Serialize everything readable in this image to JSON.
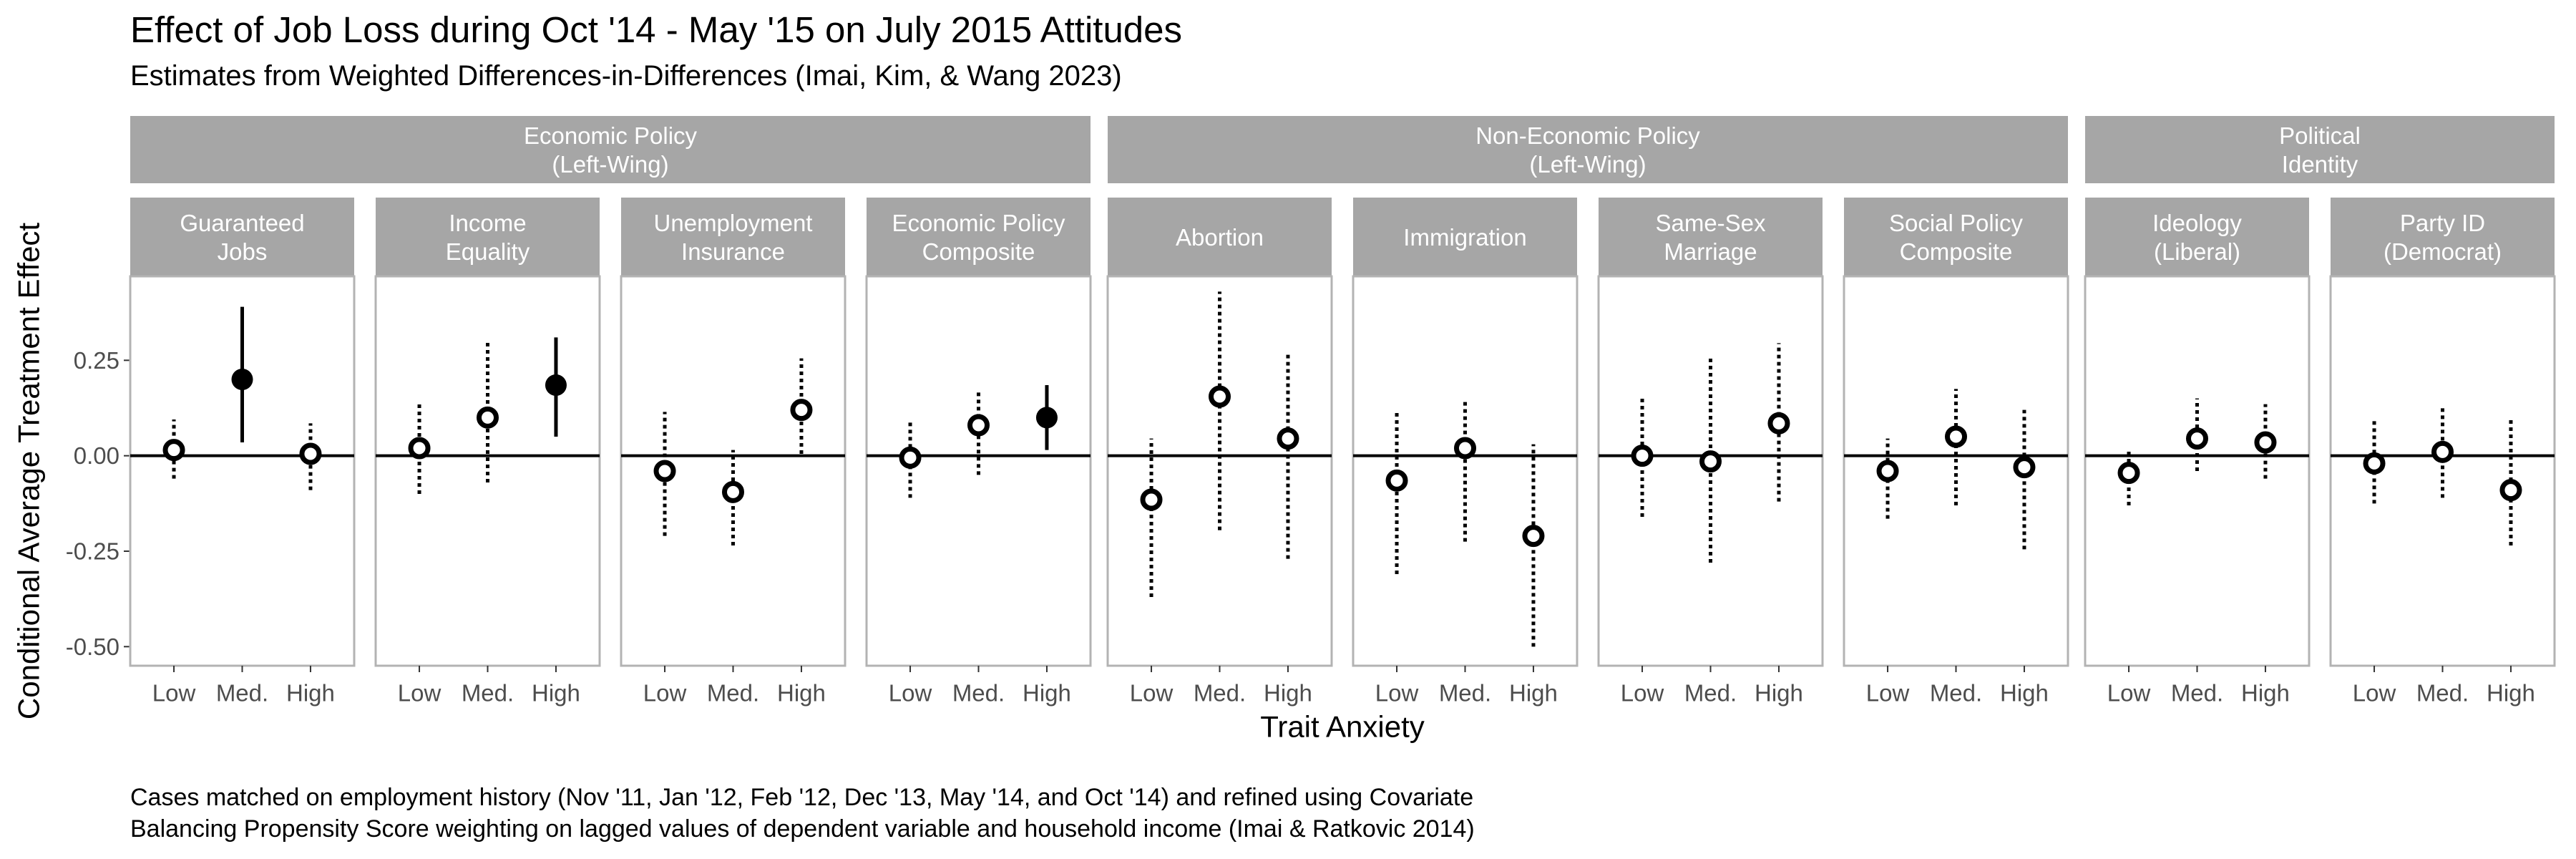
{
  "chart_data": {
    "type": "scatter",
    "title": "Effect of Job Loss during Oct '14 - May '15 on July 2015 Attitudes",
    "subtitle": "Estimates from Weighted Differences-in-Differences (Imai, Kim, & Wang 2023)",
    "xlabel": "Trait Anxiety",
    "ylabel": "Conditional Average Treatment Effect",
    "categories": [
      "Low",
      "Med.",
      "High"
    ],
    "ylim": [
      -0.55,
      0.47
    ],
    "yticks": [
      -0.5,
      -0.25,
      0.0,
      0.25
    ],
    "ytick_labels": [
      "-0.50",
      "-0.25",
      "0.00",
      "0.25"
    ],
    "reference_line": 0,
    "grid": false,
    "groups": [
      {
        "label": "Economic Policy\n(Left-Wing)",
        "panel_count": 4
      },
      {
        "label": "Non-Economic Policy\n(Left-Wing)",
        "panel_count": 4
      },
      {
        "label": "Political\nIdentity",
        "panel_count": 2
      }
    ],
    "panels": [
      {
        "label": "Guaranteed\nJobs",
        "points": [
          {
            "x": "Low",
            "est": 0.015,
            "lo": -0.06,
            "hi": 0.095,
            "significant": false
          },
          {
            "x": "Med.",
            "est": 0.2,
            "lo": 0.035,
            "hi": 0.39,
            "significant": true
          },
          {
            "x": "High",
            "est": 0.005,
            "lo": -0.09,
            "hi": 0.085,
            "significant": false
          }
        ]
      },
      {
        "label": "Income\nEquality",
        "points": [
          {
            "x": "Low",
            "est": 0.02,
            "lo": -0.1,
            "hi": 0.135,
            "significant": false
          },
          {
            "x": "Med.",
            "est": 0.1,
            "lo": -0.07,
            "hi": 0.3,
            "significant": false
          },
          {
            "x": "High",
            "est": 0.185,
            "lo": 0.05,
            "hi": 0.31,
            "significant": true
          }
        ]
      },
      {
        "label": "Unemployment\nInsurance",
        "points": [
          {
            "x": "Low",
            "est": -0.04,
            "lo": -0.21,
            "hi": 0.115,
            "significant": false
          },
          {
            "x": "Med.",
            "est": -0.095,
            "lo": -0.235,
            "hi": 0.015,
            "significant": false
          },
          {
            "x": "High",
            "est": 0.12,
            "lo": 0.005,
            "hi": 0.255,
            "significant": false
          }
        ]
      },
      {
        "label": "Economic Policy\nComposite",
        "points": [
          {
            "x": "Low",
            "est": -0.005,
            "lo": -0.11,
            "hi": 0.095,
            "significant": false
          },
          {
            "x": "Med.",
            "est": 0.08,
            "lo": -0.05,
            "hi": 0.175,
            "significant": false
          },
          {
            "x": "High",
            "est": 0.1,
            "lo": 0.015,
            "hi": 0.185,
            "significant": true
          }
        ]
      },
      {
        "label": "Abortion",
        "points": [
          {
            "x": "Low",
            "est": -0.115,
            "lo": -0.37,
            "hi": 0.045,
            "significant": false
          },
          {
            "x": "Med.",
            "est": 0.155,
            "lo": -0.195,
            "hi": 0.43,
            "significant": false
          },
          {
            "x": "High",
            "est": 0.045,
            "lo": -0.27,
            "hi": 0.27,
            "significant": false
          }
        ]
      },
      {
        "label": "Immigration",
        "points": [
          {
            "x": "Low",
            "est": -0.065,
            "lo": -0.31,
            "hi": 0.12,
            "significant": false
          },
          {
            "x": "Med.",
            "est": 0.02,
            "lo": -0.225,
            "hi": 0.15,
            "significant": false
          },
          {
            "x": "High",
            "est": -0.21,
            "lo": -0.5,
            "hi": 0.03,
            "significant": false
          }
        ]
      },
      {
        "label": "Same-Sex\nMarriage",
        "points": [
          {
            "x": "Low",
            "est": 0.0,
            "lo": -0.16,
            "hi": 0.155,
            "significant": false
          },
          {
            "x": "Med.",
            "est": -0.015,
            "lo": -0.28,
            "hi": 0.26,
            "significant": false
          },
          {
            "x": "High",
            "est": 0.085,
            "lo": -0.12,
            "hi": 0.295,
            "significant": false
          }
        ]
      },
      {
        "label": "Social Policy\nComposite",
        "points": [
          {
            "x": "Low",
            "est": -0.04,
            "lo": -0.165,
            "hi": 0.045,
            "significant": false
          },
          {
            "x": "Med.",
            "est": 0.05,
            "lo": -0.13,
            "hi": 0.175,
            "significant": false
          },
          {
            "x": "High",
            "est": -0.03,
            "lo": -0.245,
            "hi": 0.12,
            "significant": false
          }
        ]
      },
      {
        "label": "Ideology\n(Liberal)",
        "points": [
          {
            "x": "Low",
            "est": -0.045,
            "lo": -0.13,
            "hi": 0.015,
            "significant": false
          },
          {
            "x": "Med.",
            "est": 0.045,
            "lo": -0.04,
            "hi": 0.15,
            "significant": false
          },
          {
            "x": "High",
            "est": 0.035,
            "lo": -0.06,
            "hi": 0.135,
            "significant": false
          }
        ]
      },
      {
        "label": "Party ID\n(Democrat)",
        "points": [
          {
            "x": "Low",
            "est": -0.02,
            "lo": -0.125,
            "hi": 0.095,
            "significant": false
          },
          {
            "x": "Med.",
            "est": 0.01,
            "lo": -0.11,
            "hi": 0.13,
            "significant": false
          },
          {
            "x": "High",
            "est": -0.09,
            "lo": -0.235,
            "hi": 0.1,
            "significant": false
          }
        ]
      }
    ],
    "colors": {
      "strip": "#a6a6a6",
      "strip_text": "#ffffff",
      "panel_border": "#b3b3b3",
      "point": "#000000",
      "tick_label": "#4d4d4d"
    }
  },
  "caption": [
    "Cases matched on employment history (Nov '11, Jan '12, Feb '12, Dec '13, May '14, and Oct '14) and refined using Covariate",
    "Balancing Propensity Score weighting on lagged values of dependent variable and household income (Imai & Ratkovic 2014)"
  ]
}
